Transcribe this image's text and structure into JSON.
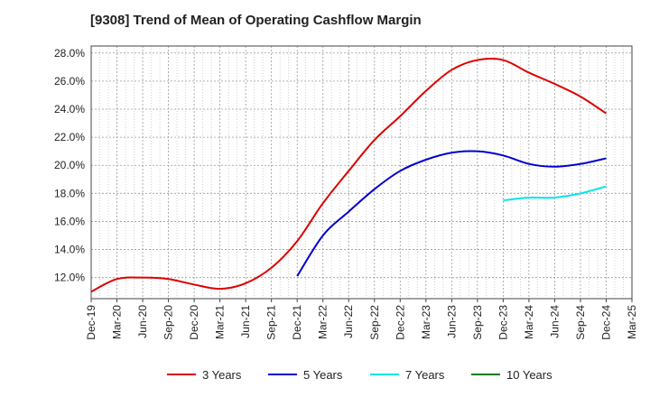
{
  "chart_data": {
    "type": "line",
    "title": "[9308]  Trend of Mean of Operating Cashflow Margin",
    "xlabel": "",
    "ylabel": "",
    "x": [
      "Dec-19",
      "Mar-20",
      "Jun-20",
      "Sep-20",
      "Dec-20",
      "Mar-21",
      "Jun-21",
      "Sep-21",
      "Dec-21",
      "Mar-22",
      "Jun-22",
      "Sep-22",
      "Dec-22",
      "Mar-23",
      "Jun-23",
      "Sep-23",
      "Dec-23",
      "Mar-24",
      "Jun-24",
      "Sep-24",
      "Dec-24",
      "Mar-25"
    ],
    "ylim": [
      10.5,
      28.5
    ],
    "yticks": [
      "12.0%",
      "14.0%",
      "16.0%",
      "18.0%",
      "20.0%",
      "22.0%",
      "24.0%",
      "26.0%",
      "28.0%"
    ],
    "ytick_values": [
      12,
      14,
      16,
      18,
      20,
      22,
      24,
      26,
      28
    ],
    "grid": true,
    "legend_position": "bottom",
    "series": [
      {
        "name": "3 Years",
        "color": "#dd0000",
        "values": [
          11.0,
          11.9,
          12.0,
          11.9,
          11.5,
          11.2,
          11.6,
          12.7,
          14.6,
          17.3,
          19.6,
          21.8,
          23.5,
          25.3,
          26.8,
          27.5,
          27.5,
          26.6,
          25.8,
          24.9,
          23.7,
          null
        ]
      },
      {
        "name": "5 Years",
        "color": "#0000cc",
        "values": [
          null,
          null,
          null,
          null,
          null,
          null,
          null,
          null,
          12.1,
          15.0,
          16.7,
          18.3,
          19.6,
          20.4,
          20.9,
          21.0,
          20.7,
          20.1,
          19.9,
          20.1,
          20.5,
          null
        ]
      },
      {
        "name": "7 Years",
        "color": "#00e5ee",
        "values": [
          null,
          null,
          null,
          null,
          null,
          null,
          null,
          null,
          null,
          null,
          null,
          null,
          null,
          null,
          null,
          null,
          17.5,
          17.7,
          17.7,
          18.0,
          18.5,
          null
        ]
      },
      {
        "name": "10 Years",
        "color": "#008000",
        "values": [
          null,
          null,
          null,
          null,
          null,
          null,
          null,
          null,
          null,
          null,
          null,
          null,
          null,
          null,
          null,
          null,
          null,
          null,
          null,
          null,
          null,
          null
        ]
      }
    ]
  }
}
